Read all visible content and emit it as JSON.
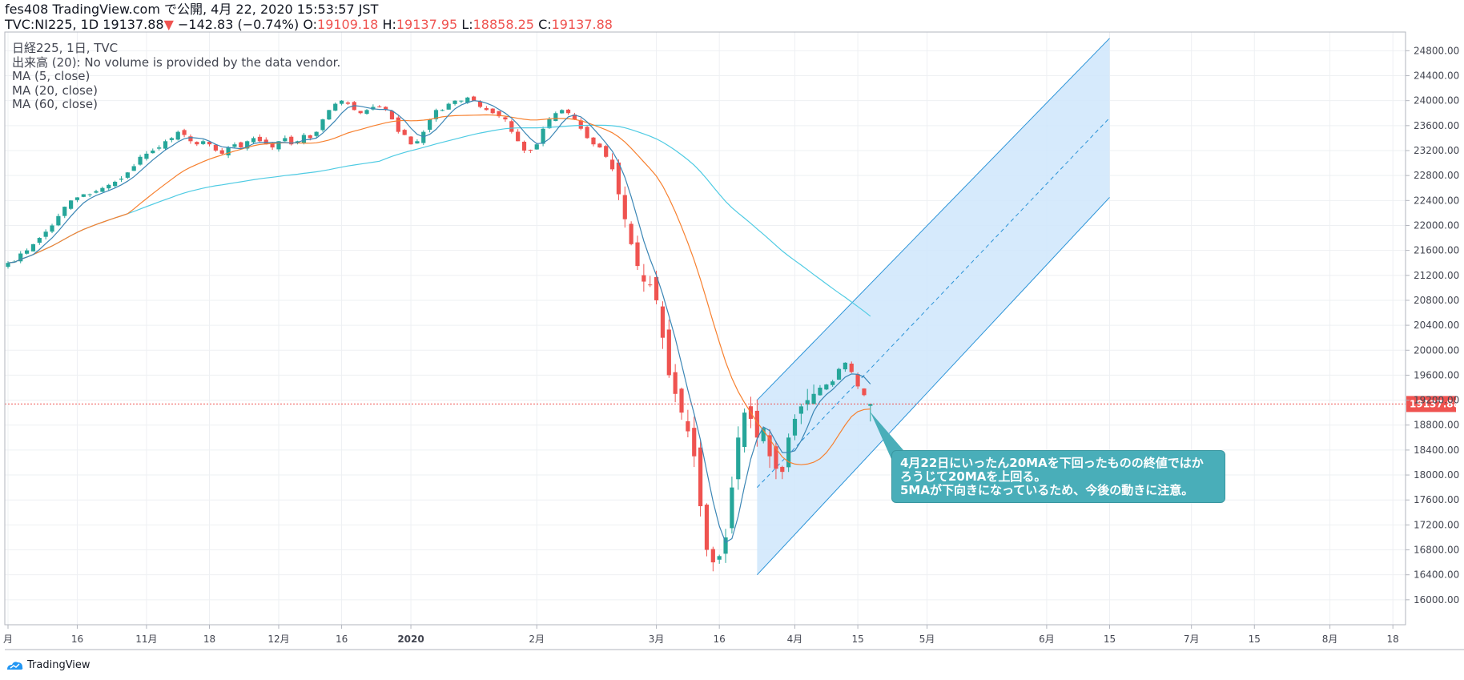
{
  "header": {
    "line1": "fes408 TradingView.com で公開, 4月 22, 2020 15:53:57 JST",
    "symbol": "TVC:NI225, 1D 19137.88",
    "change_arrow": "▼",
    "change": "−142.83 (−0.74%)",
    "o_label": "O:",
    "o_value": "19109.18",
    "h_label": "H:",
    "h_value": "19137.95",
    "l_label": "L:",
    "l_value": "18858.25",
    "c_label": "C:",
    "c_value": "19137.88"
  },
  "legend": [
    "日経225, 1日, TVC",
    "出来高 (20): No volume is provided by the data vendor.",
    "MA (5, close)",
    "MA (20, close)",
    "MA (60, close)"
  ],
  "annotation": {
    "lines": [
      "4月22日にいったん20MAを下回ったものの終値ではか",
      "ろうじて20MAを上回る。",
      "5MAが下向きになっているため、今後の動きに注意。"
    ]
  },
  "footer": {
    "brand": "TradingView"
  },
  "colors": {
    "up": "#26a69a",
    "down": "#ef5350",
    "ma5": "#3b86b5",
    "ma20": "#f7802f",
    "ma60": "#4fcbe3",
    "channel_fill": "#cfe6fb",
    "channel_line": "#2a93d8",
    "callout": "#49aeb9"
  },
  "chart_data": {
    "type": "candlestick",
    "symbol": "TVC:NI225",
    "interval": "1D",
    "y_range": [
      15600,
      25100
    ],
    "y_ticks": [
      16000,
      16400,
      16800,
      17200,
      17600,
      18000,
      18400,
      18800,
      19200,
      19600,
      20000,
      20400,
      20800,
      21200,
      21600,
      22000,
      22400,
      22800,
      23200,
      23600,
      24000,
      24400,
      24800
    ],
    "x_ticks": [
      {
        "label": "月",
        "i": 0
      },
      {
        "label": "16",
        "i": 11
      },
      {
        "label": "11月",
        "i": 22
      },
      {
        "label": "18",
        "i": 32
      },
      {
        "label": "12月",
        "i": 43
      },
      {
        "label": "16",
        "i": 53
      },
      {
        "label": "2020",
        "i": 64
      },
      {
        "label": "2月",
        "i": 84
      },
      {
        "label": "3月",
        "i": 103
      },
      {
        "label": "16",
        "i": 113
      },
      {
        "label": "4月",
        "i": 125
      },
      {
        "label": "15",
        "i": 135
      },
      {
        "label": "5月",
        "i": 146
      },
      {
        "label": "6月",
        "i": 165
      },
      {
        "label": "15",
        "i": 175
      },
      {
        "label": "7月",
        "i": 188
      },
      {
        "label": "15",
        "i": 198
      },
      {
        "label": "8月",
        "i": 210
      },
      {
        "label": "18",
        "i": 220
      }
    ],
    "last_price": 19137.88,
    "price_tag": "19137.88",
    "closes": [
      21400,
      21420,
      21550,
      21600,
      21700,
      21800,
      21900,
      22000,
      22150,
      22300,
      22400,
      22450,
      22500,
      22500,
      22550,
      22600,
      22650,
      22700,
      22750,
      22850,
      22950,
      23100,
      23150,
      23200,
      23250,
      23350,
      23400,
      23500,
      23450,
      23350,
      23300,
      23350,
      23300,
      23200,
      23150,
      23250,
      23300,
      23250,
      23350,
      23400,
      23350,
      23300,
      23250,
      23350,
      23400,
      23300,
      23350,
      23450,
      23400,
      23500,
      23700,
      23850,
      23950,
      24000,
      23950,
      23850,
      23800,
      23850,
      23900,
      23900,
      23850,
      23700,
      23500,
      23450,
      23300,
      23350,
      23500,
      23700,
      23850,
      23850,
      23950,
      24000,
      24000,
      24050,
      24000,
      23900,
      23850,
      23800,
      23750,
      23700,
      23500,
      23350,
      23200,
      23200,
      23300,
      23550,
      23700,
      23800,
      23850,
      23800,
      23700,
      23550,
      23400,
      23300,
      23250,
      23100,
      22900,
      22500,
      22100,
      21700,
      21350,
      21100,
      21050,
      20800,
      20200,
      19600,
      19300,
      19000,
      18700,
      18300,
      17500,
      16800,
      16600,
      16700,
      17000,
      17800,
      18600,
      19000,
      18900,
      18600,
      18750,
      18300,
      18100,
      18050,
      18600,
      18900,
      19100,
      19200,
      19300,
      19400,
      19450,
      19500,
      19700,
      19800,
      19650,
      19420,
      19280,
      19137.88
    ],
    "channel": {
      "upper": [
        [
          119,
          19200
        ],
        [
          175,
          25000
        ]
      ],
      "lower": [
        [
          119,
          16400
        ],
        [
          175,
          22450
        ]
      ],
      "end_x_index": 175
    },
    "series": [
      {
        "name": "MA (5, close)",
        "type": "line"
      },
      {
        "name": "MA (20, close)",
        "type": "line"
      },
      {
        "name": "MA (60, close)",
        "type": "line"
      }
    ]
  }
}
